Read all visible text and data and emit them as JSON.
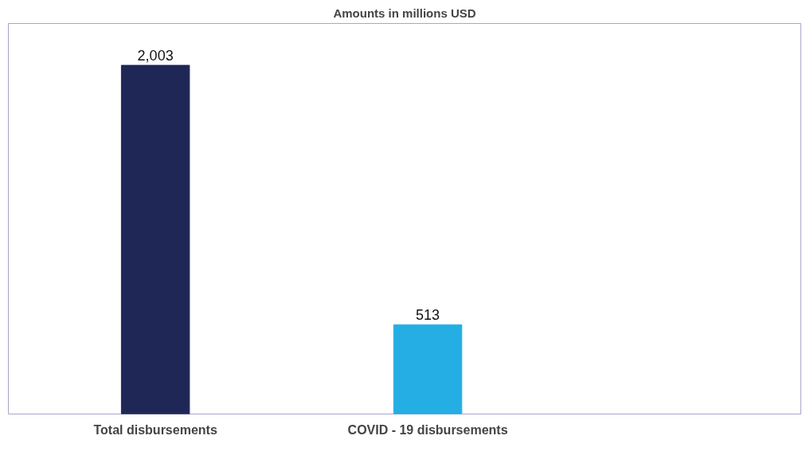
{
  "chart_data": {
    "type": "bar",
    "title": "Amounts in millions USD",
    "categories": [
      "Total disbursements",
      "COVID - 19 disbursements"
    ],
    "values": [
      2003,
      513
    ],
    "value_labels": [
      "2,003",
      "513"
    ],
    "colors": [
      "#1f2756",
      "#25aee3"
    ],
    "grid": false
  }
}
